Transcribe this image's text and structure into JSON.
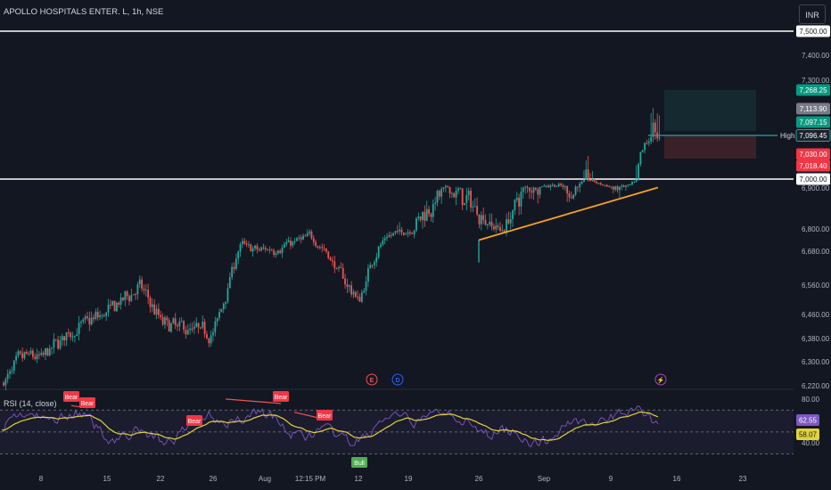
{
  "header": {
    "symbol": "APOLLO HOSPITALS ENTER. L, 1h, NSE",
    "currency": "INR"
  },
  "rsi": {
    "label": "RSI (14, close)"
  },
  "colors": {
    "background": "#131722",
    "up": "#26a69a",
    "down": "#ef5350",
    "trendline": "#f7a21b",
    "hline": "#ffffff",
    "rsi_line": "#7e57c2",
    "rsi_ma": "#e2d33a"
  },
  "chart_data": [
    {
      "type": "candlestick",
      "title": "APOLLO HOSPITALS ENTER. L, 1h, NSE",
      "y_ticks": [
        "7,500.00",
        "7,400.00",
        "7,300.00",
        "6,900.00",
        "6,800.00",
        "6,680.00",
        "6,560.00",
        "6,460.00",
        "6,380.00",
        "6,300.00",
        "6,220.00"
      ],
      "x_ticks": [
        "8",
        "15",
        "22",
        "26",
        "Aug",
        "12:15 PM",
        "12",
        "19",
        "26",
        "Sep",
        "9",
        "16",
        "23"
      ],
      "price_labels": [
        "7,500.00",
        "7,268.25",
        "7,113.90",
        "7,097.15",
        "7,096.45",
        "7,030.00",
        "7,018.40",
        "7,000.00"
      ],
      "high_label": "High",
      "horizontal_lines": [
        7500,
        7000
      ],
      "high_line": 7096.45,
      "trendline": {
        "from": [
          6740,
          "Aug 26"
        ],
        "to": [
          6905,
          "Sep 14"
        ]
      },
      "position": {
        "entry": 7113.9,
        "target": 7268.25,
        "stop": 7030
      },
      "approx_close_path": [
        {
          "x": "Jul 1",
          "y": 6230
        },
        {
          "x": "Jul 3",
          "y": 6290
        },
        {
          "x": "Jul 5",
          "y": 6320
        },
        {
          "x": "Jul 8",
          "y": 6310
        },
        {
          "x": "Jul 10",
          "y": 6380
        },
        {
          "x": "Jul 12",
          "y": 6420
        },
        {
          "x": "Jul 15",
          "y": 6470
        },
        {
          "x": "Jul 17",
          "y": 6510
        },
        {
          "x": "Jul 19",
          "y": 6560
        },
        {
          "x": "Jul 22",
          "y": 6430
        },
        {
          "x": "Jul 24",
          "y": 6410
        },
        {
          "x": "Jul 26",
          "y": 6400
        },
        {
          "x": "Jul 29",
          "y": 6720
        },
        {
          "x": "Jul 31",
          "y": 6680
        },
        {
          "x": "Aug 2",
          "y": 6700
        },
        {
          "x": "Aug 5",
          "y": 6760
        },
        {
          "x": "Aug 7",
          "y": 6680
        },
        {
          "x": "Aug 9",
          "y": 6600
        },
        {
          "x": "Aug 12",
          "y": 6500
        },
        {
          "x": "Aug 14",
          "y": 6680
        },
        {
          "x": "Aug 16",
          "y": 6760
        },
        {
          "x": "Aug 19",
          "y": 6800
        },
        {
          "x": "Aug 21",
          "y": 6860
        },
        {
          "x": "Aug 23",
          "y": 6900
        },
        {
          "x": "Aug 26",
          "y": 6840
        },
        {
          "x": "Aug 28",
          "y": 6790
        },
        {
          "x": "Aug 30",
          "y": 6900
        },
        {
          "x": "Sep 2",
          "y": 6940
        },
        {
          "x": "Sep 4",
          "y": 6880
        },
        {
          "x": "Sep 6",
          "y": 7000
        },
        {
          "x": "Sep 9",
          "y": 6900
        },
        {
          "x": "Sep 11",
          "y": 6920
        },
        {
          "x": "Sep 13",
          "y": 7097.15
        }
      ]
    },
    {
      "type": "line",
      "title": "RSI (14, close)",
      "y_ticks": [
        "80.00",
        "40.00"
      ],
      "values_labels": {
        "rsi": "62.55",
        "ma": "58.07"
      },
      "bands": [
        70,
        50,
        30
      ],
      "markers": [
        {
          "label": "Bear",
          "kind": "bear"
        },
        {
          "label": "Bear",
          "kind": "bear"
        },
        {
          "label": "Bear",
          "kind": "bear"
        },
        {
          "label": "Bear",
          "kind": "bear"
        },
        {
          "label": "Bear",
          "kind": "bear"
        },
        {
          "label": "Bull",
          "kind": "bull"
        }
      ]
    }
  ]
}
